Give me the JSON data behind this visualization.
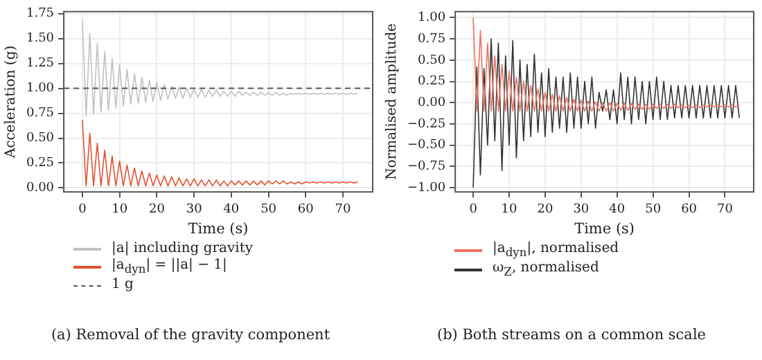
{
  "chart_data": [
    {
      "type": "line",
      "xlabel": "Time (s)",
      "ylabel": "Acceleration (g)",
      "legend": "bottom",
      "grid": true,
      "marker": "none",
      "line_style": "solid",
      "x": [
        0,
        1,
        2,
        3,
        4,
        5,
        6,
        7,
        8,
        9,
        10,
        11,
        12,
        13,
        14,
        15,
        16,
        17,
        18,
        19,
        20,
        21,
        22,
        23,
        24,
        25,
        26,
        27,
        28,
        29,
        30,
        31,
        32,
        33,
        34,
        35,
        36,
        37,
        38,
        39,
        40,
        41,
        42,
        43,
        44,
        45,
        46,
        47,
        48,
        49,
        50,
        51,
        52,
        53,
        54,
        55,
        56,
        57,
        58,
        59,
        60,
        61,
        62,
        63,
        64,
        65,
        66,
        67,
        68,
        69,
        70,
        71,
        72,
        73,
        74
      ],
      "xlim": [
        -5,
        78
      ],
      "xticks": [
        0,
        10,
        20,
        30,
        40,
        50,
        60,
        70
      ],
      "ylim": [
        -0.04,
        1.77
      ],
      "yticks": [
        {
          "value": 0,
          "label": "0.00"
        },
        {
          "value": 0.25,
          "label": "0.25"
        },
        {
          "value": 0.5,
          "label": "0.50"
        },
        {
          "value": 0.75,
          "label": "0.75"
        },
        {
          "value": 1,
          "label": "1.00"
        },
        {
          "value": 1.25,
          "label": "1.25"
        },
        {
          "value": 1.5,
          "label": "1.50"
        },
        {
          "value": 1.75,
          "label": "1.75"
        }
      ],
      "series": [
        {
          "name": "|a| including gravity",
          "color": "#c0c0c0",
          "values": [
            1.68,
            0.72,
            1.55,
            0.74,
            1.45,
            0.76,
            1.37,
            0.78,
            1.3,
            0.8,
            1.24,
            0.82,
            1.19,
            0.84,
            1.15,
            0.85,
            1.11,
            0.86,
            1.08,
            0.87,
            1.06,
            0.88,
            1.04,
            0.89,
            1.02,
            0.9,
            1.01,
            0.9,
            1.0,
            0.91,
            0.99,
            0.91,
            0.99,
            0.91,
            0.98,
            0.92,
            0.98,
            0.92,
            0.97,
            0.92,
            0.97,
            0.92,
            0.97,
            0.93,
            0.96,
            0.93,
            0.96,
            0.93,
            0.96,
            0.93,
            0.96,
            0.93,
            0.96,
            0.93,
            0.95,
            0.93,
            0.95,
            0.94,
            0.95,
            0.94,
            0.95,
            0.94,
            0.95,
            0.94,
            0.95,
            0.94,
            0.95,
            0.94,
            0.95,
            0.94,
            0.95,
            0.94,
            0.95,
            0.94,
            0.95
          ]
        },
        {
          "name": "|a$_{dyn}$| = ||a| − 1|",
          "color": "#e4502f",
          "values": [
            0.68,
            0.02,
            0.55,
            0.02,
            0.45,
            0.02,
            0.38,
            0.02,
            0.32,
            0.02,
            0.27,
            0.02,
            0.23,
            0.02,
            0.2,
            0.02,
            0.17,
            0.02,
            0.15,
            0.02,
            0.13,
            0.02,
            0.12,
            0.02,
            0.11,
            0.02,
            0.1,
            0.02,
            0.09,
            0.02,
            0.09,
            0.02,
            0.08,
            0.02,
            0.08,
            0.02,
            0.08,
            0.02,
            0.07,
            0.02,
            0.07,
            0.03,
            0.07,
            0.03,
            0.07,
            0.03,
            0.07,
            0.03,
            0.07,
            0.03,
            0.07,
            0.04,
            0.07,
            0.04,
            0.07,
            0.04,
            0.06,
            0.04,
            0.06,
            0.04,
            0.06,
            0.05,
            0.06,
            0.05,
            0.06,
            0.05,
            0.06,
            0.05,
            0.06,
            0.05,
            0.06,
            0.05,
            0.06,
            0.05,
            0.06
          ]
        }
      ],
      "ref_lines": [
        {
          "axis": "y",
          "value": 1,
          "label": "1 g",
          "color": "#555555",
          "line_style": "dashed"
        }
      ],
      "annotations": [
        "(a) Removal of the gravity component"
      ]
    },
    {
      "type": "line",
      "xlabel": "Time (s)",
      "ylabel": "Normalised amplitude",
      "legend": "bottom",
      "grid": true,
      "marker": "none",
      "line_style": "solid",
      "x": [
        0,
        1,
        2,
        3,
        4,
        5,
        6,
        7,
        8,
        9,
        10,
        11,
        12,
        13,
        14,
        15,
        16,
        17,
        18,
        19,
        20,
        21,
        22,
        23,
        24,
        25,
        26,
        27,
        28,
        29,
        30,
        31,
        32,
        33,
        34,
        35,
        36,
        37,
        38,
        39,
        40,
        41,
        42,
        43,
        44,
        45,
        46,
        47,
        48,
        49,
        50,
        51,
        52,
        53,
        54,
        55,
        56,
        57,
        58,
        59,
        60,
        61,
        62,
        63,
        64,
        65,
        66,
        67,
        68,
        69,
        70,
        71,
        72,
        73,
        74
      ],
      "xlim": [
        -5,
        78
      ],
      "xticks": [
        0,
        10,
        20,
        30,
        40,
        50,
        60,
        70
      ],
      "ylim": [
        -1.05,
        1.07
      ],
      "yticks": [
        {
          "value": -1,
          "label": "−1.00"
        },
        {
          "value": -0.75,
          "label": "−0.75"
        },
        {
          "value": -0.5,
          "label": "−0.50"
        },
        {
          "value": -0.25,
          "label": "−0.25"
        },
        {
          "value": 0,
          "label": "0.00"
        },
        {
          "value": 0.25,
          "label": "0.25"
        },
        {
          "value": 0.5,
          "label": "0.50"
        },
        {
          "value": 0.75,
          "label": "0.75"
        },
        {
          "value": 1,
          "label": "1.00"
        }
      ],
      "series": [
        {
          "name": "|a$_{dyn}$|, normalised",
          "color": "#f07060",
          "values": [
            1.0,
            -0.1,
            0.85,
            -0.1,
            0.7,
            -0.1,
            0.55,
            -0.1,
            0.45,
            -0.1,
            0.37,
            -0.1,
            0.3,
            -0.1,
            0.25,
            -0.1,
            0.2,
            -0.1,
            0.16,
            -0.1,
            0.12,
            -0.1,
            0.1,
            -0.1,
            0.08,
            -0.1,
            0.06,
            -0.1,
            0.04,
            -0.1,
            0.03,
            -0.1,
            0.02,
            -0.1,
            0.01,
            -0.1,
            0.0,
            -0.1,
            0.0,
            -0.1,
            -0.01,
            -0.09,
            -0.01,
            -0.09,
            -0.01,
            -0.08,
            -0.02,
            -0.08,
            -0.02,
            -0.08,
            -0.02,
            -0.07,
            -0.02,
            -0.07,
            -0.02,
            -0.07,
            -0.02,
            -0.06,
            -0.03,
            -0.06,
            -0.03,
            -0.06,
            -0.03,
            -0.06,
            -0.03,
            -0.05,
            -0.03,
            -0.05,
            -0.03,
            -0.05,
            -0.03,
            -0.05,
            -0.03,
            -0.05,
            -0.03
          ]
        },
        {
          "name": "ω$_{Z}$, normalised",
          "color": "#333333",
          "values": [
            -1.0,
            0.42,
            -0.85,
            0.4,
            -0.5,
            0.75,
            -0.45,
            0.7,
            -0.8,
            0.55,
            -0.5,
            0.73,
            -0.65,
            0.5,
            -0.45,
            0.45,
            -0.4,
            0.57,
            -0.35,
            0.35,
            -0.4,
            0.4,
            -0.35,
            0.3,
            -0.3,
            0.3,
            -0.35,
            0.35,
            -0.3,
            0.3,
            -0.3,
            0.25,
            -0.25,
            0.3,
            -0.3,
            0.12,
            -0.1,
            0.15,
            -0.2,
            0.15,
            -0.25,
            0.35,
            -0.2,
            0.3,
            -0.25,
            0.3,
            -0.2,
            0.25,
            -0.25,
            0.25,
            -0.2,
            0.3,
            -0.2,
            0.25,
            -0.2,
            0.2,
            -0.18,
            0.2,
            -0.18,
            0.2,
            -0.18,
            0.2,
            -0.18,
            0.2,
            -0.18,
            0.2,
            -0.18,
            0.2,
            -0.18,
            0.2,
            -0.18,
            0.2,
            -0.18,
            0.2,
            -0.18
          ]
        }
      ],
      "annotations": [
        "(b) Both streams on a common scale"
      ]
    }
  ]
}
